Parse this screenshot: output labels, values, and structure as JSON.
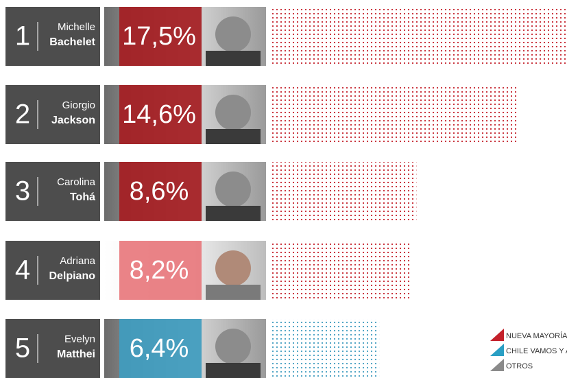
{
  "chart_data": {
    "type": "bar",
    "ranks": [
      1,
      2,
      3,
      4,
      5
    ],
    "first_names": [
      "Michelle",
      "Giorgio",
      "Carolina",
      "Adriana",
      "Evelyn"
    ],
    "last_names": [
      "Bachelet",
      "Jackson",
      "Tohá",
      "Delpiano",
      "Matthei"
    ],
    "values": [
      17.5,
      14.6,
      8.6,
      8.2,
      6.4
    ],
    "value_labels": [
      "17,5%",
      "14,6%",
      "8,6%",
      "8,2%",
      "6,4%"
    ],
    "colors": [
      "#a51d22",
      "#a51d22",
      "#a51d22",
      "#e8787d",
      "#3f9cbf"
    ],
    "dot_colors": [
      "#c4212b",
      "#c4212b",
      "#c4212b",
      "#c4212b",
      "#3f9cbf"
    ],
    "legend": [
      {
        "label": "NUEVA MAYORÍA Y",
        "color": "#c4212b"
      },
      {
        "label": "CHILE VAMOS Y AI",
        "color": "#2a9fc4"
      },
      {
        "label": "OTROS",
        "color": "#8a8a8a"
      }
    ]
  }
}
